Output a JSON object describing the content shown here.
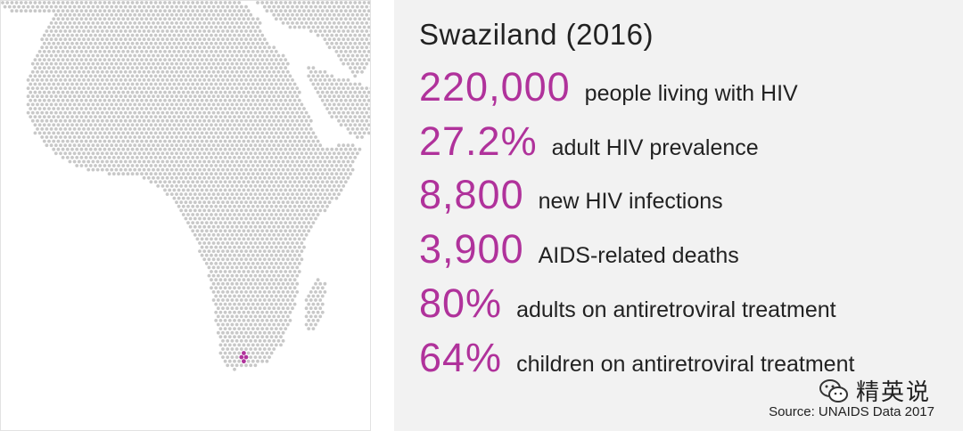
{
  "map": {
    "region": "Africa",
    "highlight_label": "Swaziland",
    "dot_color": "#c8c8c8",
    "highlight_color": "#b0329b"
  },
  "panel": {
    "title": "Swaziland (2016)",
    "accent_color": "#b0329b",
    "stats": [
      {
        "value": "220,000",
        "label": "people living with HIV"
      },
      {
        "value": "27.2%",
        "label": "adult HIV prevalence"
      },
      {
        "value": "8,800",
        "label": "new HIV infections"
      },
      {
        "value": "3,900",
        "label": "AIDS-related deaths"
      },
      {
        "value": "80%",
        "label": "adults on antiretroviral treatment"
      },
      {
        "value": "64%",
        "label": "children on antiretroviral treatment"
      }
    ],
    "watermark": "精英说",
    "watermark_icon": "wechat-icon",
    "source": "Source: UNAIDS Data 2017"
  }
}
